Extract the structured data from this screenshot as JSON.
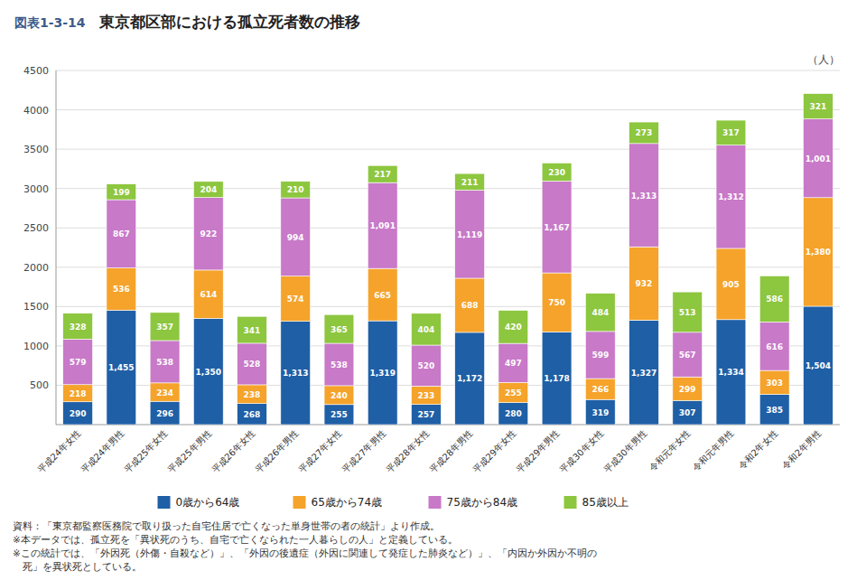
{
  "chart_data": {
    "type": "bar",
    "stacked": true,
    "title": "東京都区部における孤立死者数の推移",
    "figure_number": "図表1-3-14",
    "ylabel": "（人）",
    "categories": [
      "平成24年女性",
      "平成24年男性",
      "平成25年女性",
      "平成25年男性",
      "平成26年女性",
      "平成26年男性",
      "平成27年女性",
      "平成27年男性",
      "平成28年女性",
      "平成28年男性",
      "平成29年女性",
      "平成29年男性",
      "平成30年女性",
      "平成30年男性",
      "令和元年女性",
      "令和元年男性",
      "令和2年女性",
      "令和2年男性"
    ],
    "series": [
      {
        "name": "0歳から64歳",
        "color": "#1f5fa6",
        "values": [
          290,
          1455,
          296,
          1350,
          268,
          1313,
          255,
          1319,
          257,
          1172,
          280,
          1178,
          319,
          1327,
          307,
          1334,
          385,
          1504
        ],
        "value_labels": [
          "290",
          "1,455",
          "296",
          "1,350",
          "268",
          "1,313",
          "255",
          "1,319",
          "257",
          "1,172",
          "280",
          "1,178",
          "319",
          "1,327",
          "307",
          "1,334",
          "385",
          "1,504"
        ]
      },
      {
        "name": "65歳から74歳",
        "color": "#f5a32a",
        "values": [
          218,
          536,
          234,
          614,
          238,
          574,
          240,
          665,
          233,
          688,
          255,
          750,
          266,
          932,
          299,
          905,
          303,
          1380
        ],
        "value_labels": [
          "218",
          "536",
          "234",
          "614",
          "238",
          "574",
          "240",
          "665",
          "233",
          "688",
          "255",
          "750",
          "266",
          "932",
          "299",
          "905",
          "303",
          "1,380"
        ]
      },
      {
        "name": "75歳から84歳",
        "color": "#c879c8",
        "values": [
          579,
          867,
          538,
          922,
          528,
          994,
          538,
          1091,
          520,
          1119,
          497,
          1167,
          599,
          1313,
          567,
          1312,
          616,
          1001
        ],
        "value_labels": [
          "579",
          "867",
          "538",
          "922",
          "528",
          "994",
          "538",
          "1,091",
          "520",
          "1,119",
          "497",
          "1,167",
          "599",
          "1,313",
          "567",
          "1,312",
          "616",
          "1,001"
        ]
      },
      {
        "name": "85歳以上",
        "color": "#8dc63f",
        "values": [
          328,
          199,
          357,
          204,
          341,
          210,
          365,
          217,
          404,
          211,
          420,
          230,
          484,
          273,
          513,
          317,
          586,
          321
        ],
        "value_labels": [
          "328",
          "199",
          "357",
          "204",
          "341",
          "210",
          "365",
          "217",
          "404",
          "211",
          "420",
          "230",
          "484",
          "273",
          "513",
          "317",
          "586",
          "321"
        ]
      }
    ],
    "ylim": [
      0,
      4500
    ],
    "yticks": [
      500,
      1000,
      1500,
      2000,
      2500,
      3000,
      3500,
      4000,
      4500
    ],
    "grid": true,
    "legend": "bottom",
    "data_labels": true,
    "annotations": [
      "資料：「東京都監察医務院で取り扱った自宅住居で亡くなった単身世帯の者の統計」より作成。",
      "※本データでは、孤立死を「異状死のうち、自宅で亡くなられた一人暮らしの人」と定義している。",
      "※この統計では、「外因死（外傷・自殺など）」、「外因の後遺症（外因に関連して発症した肺炎など）」、「内因か外因か不明の",
      "　死」を異状死としている。"
    ]
  }
}
